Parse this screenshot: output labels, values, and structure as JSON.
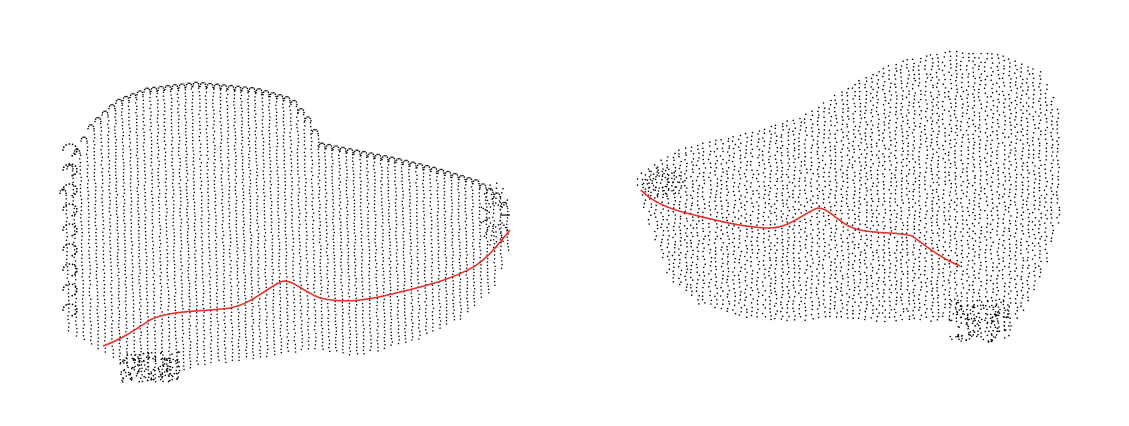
{
  "image": {
    "background": "#ffffff",
    "point_color": "#000000",
    "curve_color": "#e8302a",
    "views": [
      {
        "id": "left",
        "subject": "point-cloud-surface",
        "overlay": "red-curve"
      },
      {
        "id": "right",
        "subject": "point-cloud-surface",
        "overlay": "red-curve"
      }
    ]
  }
}
